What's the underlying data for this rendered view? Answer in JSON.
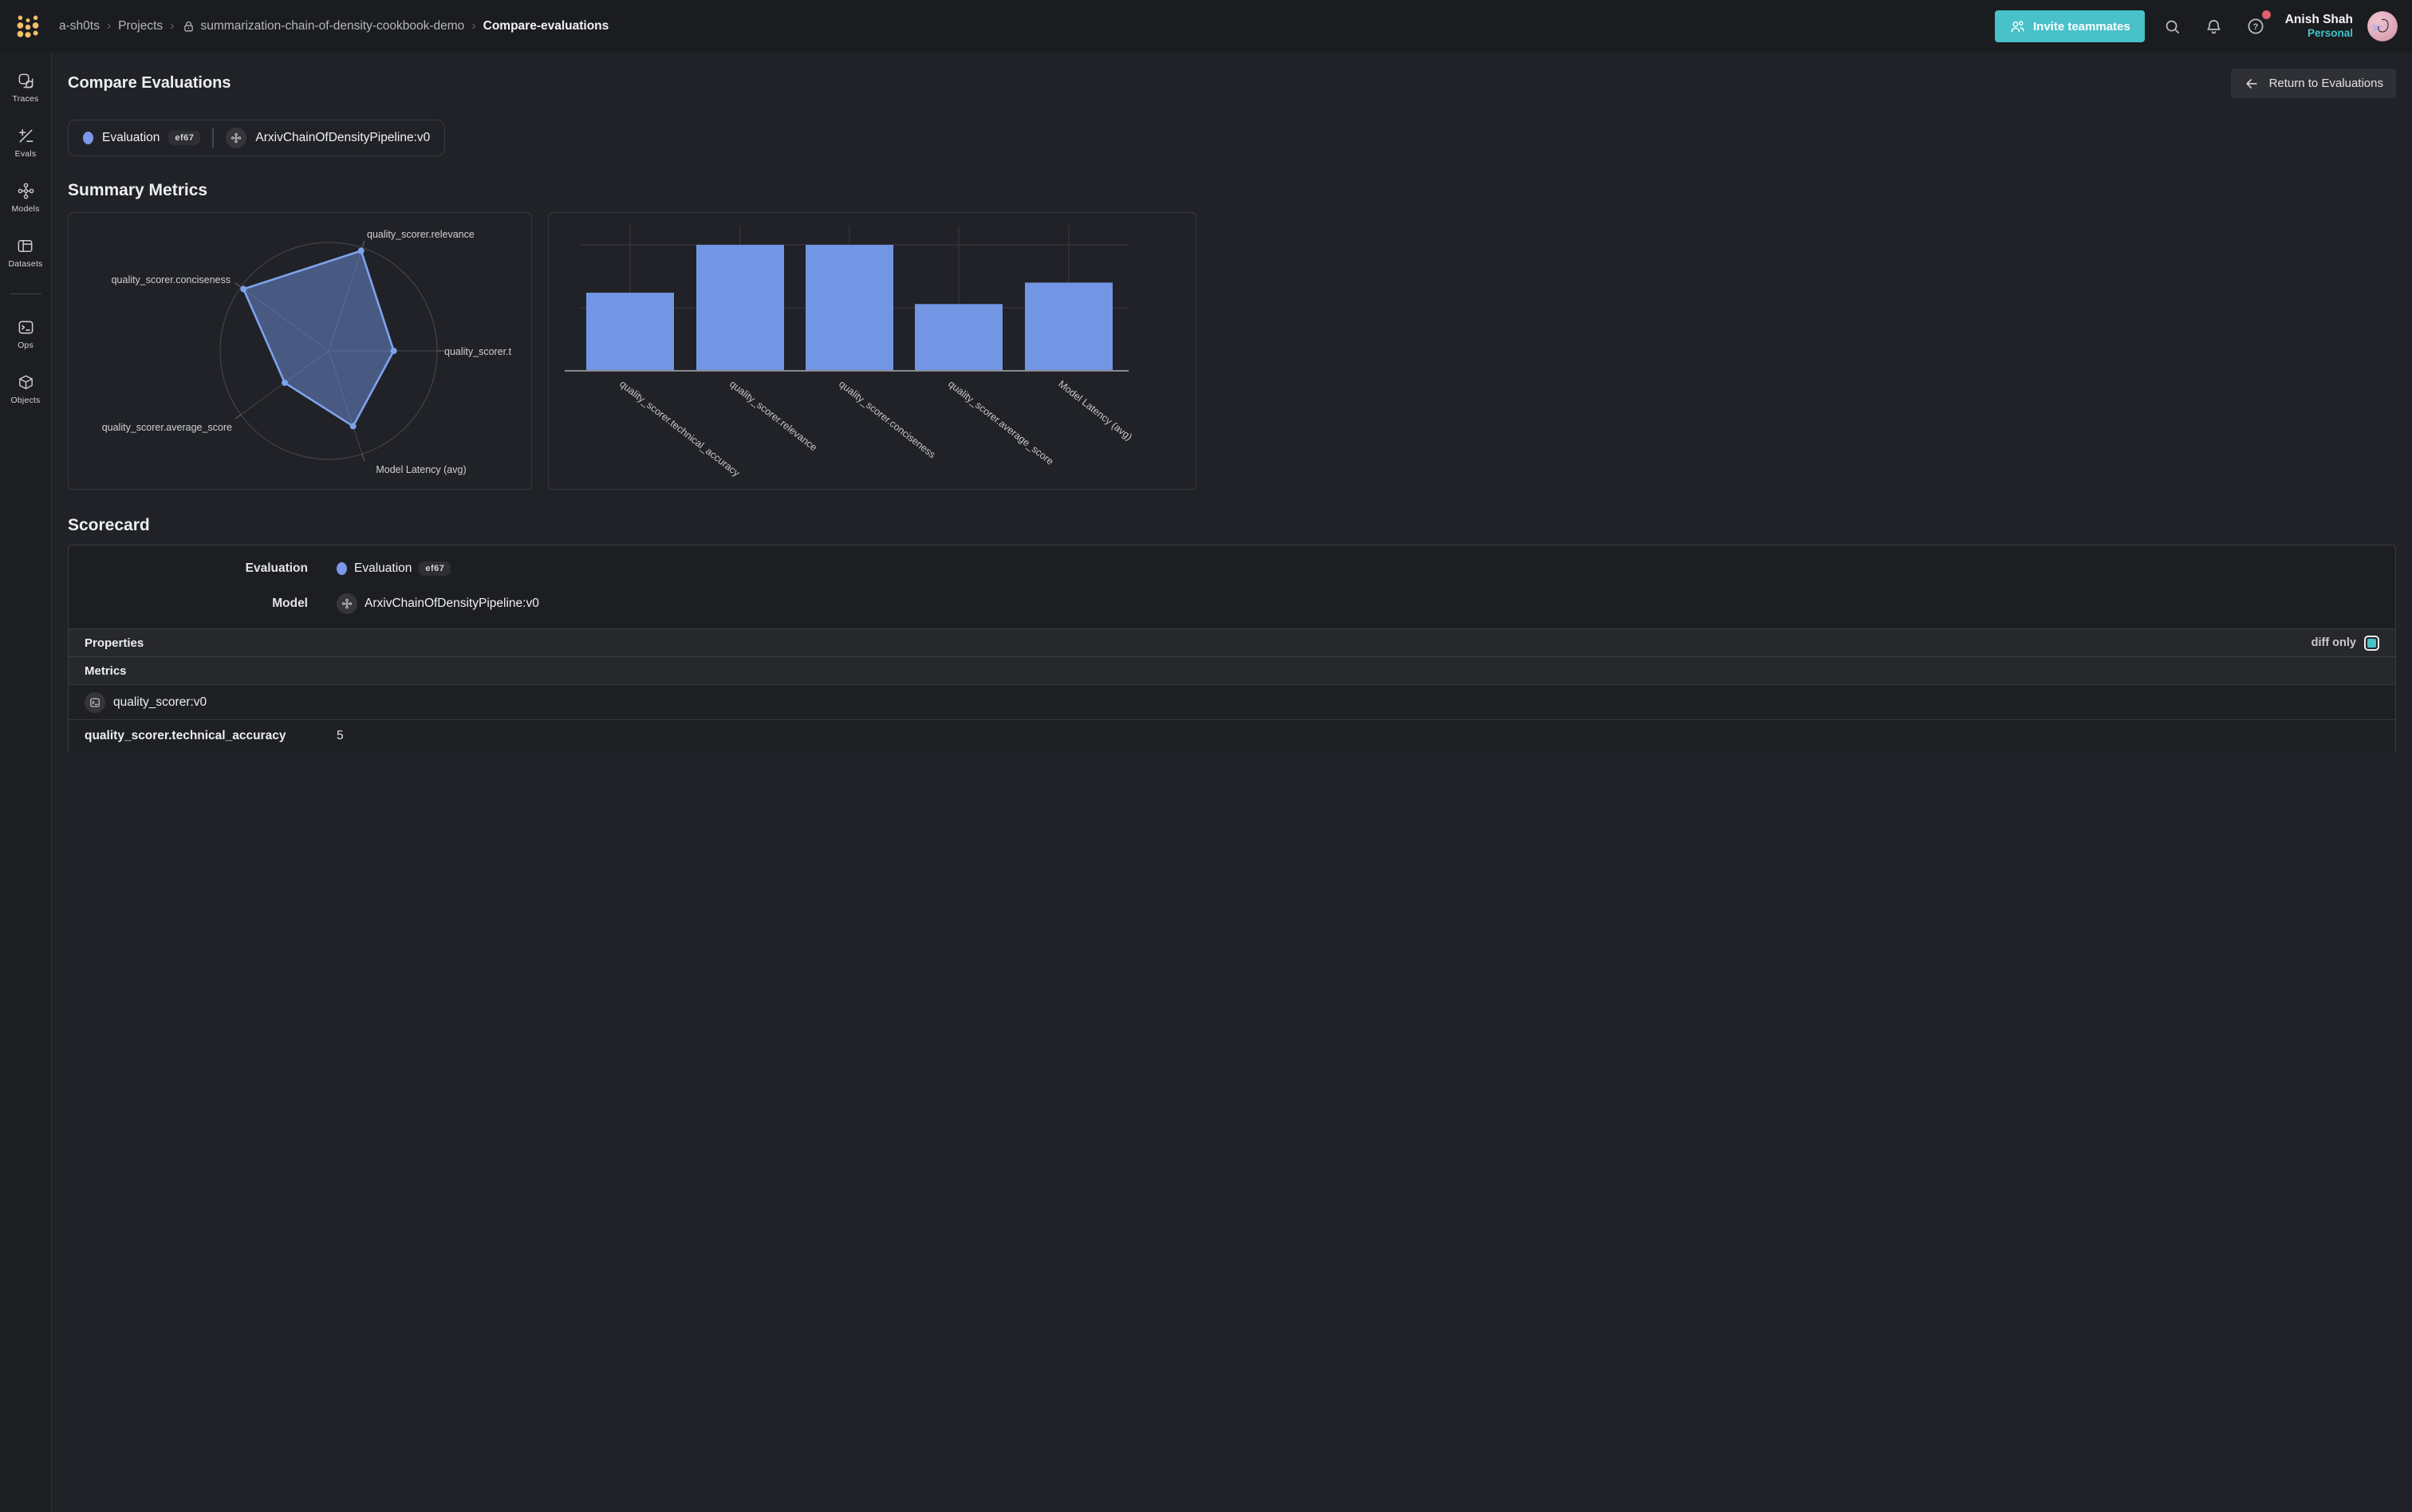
{
  "navbar": {
    "breadcrumbs": [
      "a-sh0ts",
      "Projects",
      "summarization-chain-of-density-cookbook-demo",
      "Compare-evaluations"
    ],
    "invite_button": "Invite teammates",
    "user_name": "Anish Shah",
    "user_scope": "Personal"
  },
  "sidebar": {
    "items": [
      {
        "label": "Traces"
      },
      {
        "label": "Evals"
      },
      {
        "label": "Models"
      },
      {
        "label": "Datasets"
      },
      {
        "label": "Ops"
      },
      {
        "label": "Objects"
      }
    ]
  },
  "page": {
    "title": "Compare Evaluations",
    "return_button": "Return to Evaluations"
  },
  "comparison_chip": {
    "evaluation_label": "Evaluation",
    "evaluation_id": "ef67",
    "model_name": "ArxivChainOfDensityPipeline:v0"
  },
  "summary_metrics": {
    "heading": "Summary Metrics"
  },
  "chart_data": [
    {
      "type": "radar",
      "title": "",
      "axes": [
        "quality_scorer.technical_accuracy",
        "quality_scorer.relevance",
        "quality_scorer.conciseness",
        "quality_scorer.average_score",
        "Model Latency (avg)"
      ],
      "axis_labels_shown": [
        "quality_scorer.t",
        "quality_scorer.relevance",
        "quality_scorer.conciseness",
        "quality_scorer.average_score",
        "Model Latency (avg)"
      ],
      "values_norm": [
        0.6,
        0.97,
        0.97,
        0.5,
        0.73
      ],
      "rlim": [
        0,
        1
      ],
      "grid": "outer-ring-and-spokes-only",
      "fill_color": "rgba(116,150,229,0.48)",
      "stroke_color": "#7da3ed"
    },
    {
      "type": "bar",
      "title": "",
      "categories": [
        "quality_scorer.technical_accuracy",
        "quality_scorer.relevance",
        "quality_scorer.conciseness",
        "quality_scorer.average_score",
        "Model Latency (avg)"
      ],
      "values_norm": [
        0.62,
        1.0,
        1.0,
        0.53,
        0.7
      ],
      "ylim": [
        0,
        1
      ],
      "gridlines_at": [
        0.5,
        1.0
      ],
      "y_tick_labels": "none shown",
      "bar_color": "#7296e4",
      "xlabel": "",
      "ylabel": ""
    }
  ],
  "scorecard": {
    "heading": "Scorecard",
    "evaluation_label": "Evaluation",
    "model_label": "Model",
    "properties_label": "Properties",
    "diff_only_label": "diff only",
    "diff_only_checked": true,
    "metrics_label": "Metrics",
    "scorer_ref": "quality_scorer:v0",
    "metric_name": "quality_scorer.technical_accuracy",
    "metric_value": "5"
  },
  "colors": {
    "accent_teal": "#48c1c8",
    "chart_blue": "#7296e4",
    "eval_dot_blue": "#7b97e8",
    "notification_red": "#e25d6e",
    "logo_gold": "#f3bf68",
    "background": "#212227"
  }
}
